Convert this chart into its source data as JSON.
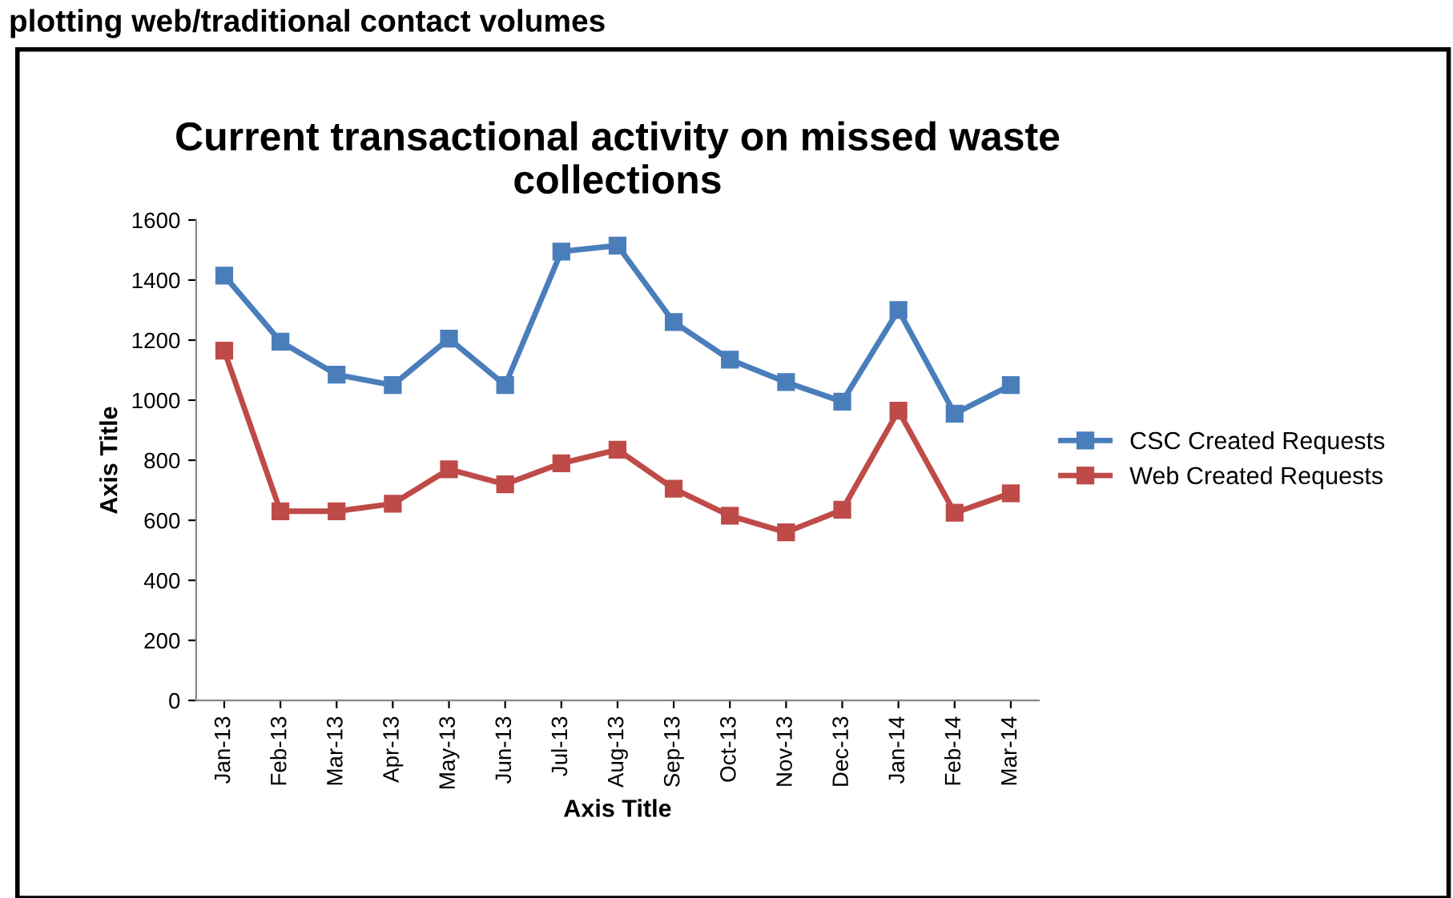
{
  "chart_data": {
    "type": "line",
    "title": "Current transactional activity on missed waste\ncollections",
    "xlabel": "Axis Title",
    "ylabel": "Axis Title",
    "annotations": [
      "plotting web/traditional contact volumes"
    ],
    "categories": [
      "Jan-13",
      "Feb-13",
      "Mar-13",
      "Apr-13",
      "May-13",
      "Jun-13",
      "Jul-13",
      "Aug-13",
      "Sep-13",
      "Oct-13",
      "Nov-13",
      "Dec-13",
      "Jan-14",
      "Feb-14",
      "Mar-14"
    ],
    "series": [
      {
        "name": "CSC Created Requests",
        "color": "#4a7ebb",
        "values": [
          1415,
          1195,
          1085,
          1050,
          1205,
          1050,
          1495,
          1515,
          1260,
          1135,
          1060,
          995,
          1300,
          955,
          1050
        ]
      },
      {
        "name": "Web Created Requests",
        "color": "#be4b48",
        "values": [
          1165,
          630,
          630,
          655,
          770,
          720,
          790,
          835,
          705,
          615,
          560,
          635,
          965,
          625,
          690
        ]
      }
    ],
    "ylim": [
      0,
      1600
    ],
    "yticks": [
      0,
      200,
      400,
      600,
      800,
      1000,
      1200,
      1400,
      1600
    ],
    "grid": false,
    "legend": "right",
    "marker": "square",
    "line_style": "solid"
  }
}
